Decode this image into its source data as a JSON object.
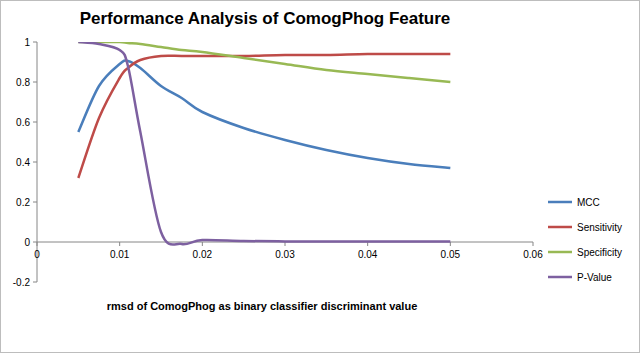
{
  "chart_data": {
    "type": "line",
    "title": "Performance Analysis of ComogPhog Feature",
    "x_label": "rmsd of ComogPhog as binary classifier discriminant value",
    "x": [
      0.005,
      0.0075,
      0.01,
      0.011,
      0.0125,
      0.015,
      0.0175,
      0.02,
      0.025,
      0.03,
      0.035,
      0.04,
      0.045,
      0.05
    ],
    "series": [
      {
        "name": "MCC",
        "color": "#4a7ebb",
        "values": [
          0.55,
          0.78,
          0.89,
          0.905,
          0.87,
          0.78,
          0.72,
          0.65,
          0.57,
          0.51,
          0.46,
          0.42,
          0.39,
          0.37
        ]
      },
      {
        "name": "Sensitivity",
        "color": "#be4b48",
        "values": [
          0.32,
          0.62,
          0.82,
          0.87,
          0.91,
          0.93,
          0.93,
          0.93,
          0.93,
          0.935,
          0.935,
          0.94,
          0.94,
          0.94
        ]
      },
      {
        "name": "Specificity",
        "color": "#98b954",
        "values": [
          1.0,
          1.0,
          1.0,
          0.995,
          0.99,
          0.975,
          0.96,
          0.95,
          0.92,
          0.89,
          0.86,
          0.84,
          0.82,
          0.8
        ]
      },
      {
        "name": "P-Value",
        "color": "#7d60a0",
        "values": [
          1.0,
          0.99,
          0.96,
          0.88,
          0.55,
          0.05,
          -0.01,
          0.01,
          0.005,
          0.003,
          0.002,
          0.002,
          0.002,
          0.003
        ]
      }
    ],
    "xlim": [
      0,
      0.06
    ],
    "xticks": [
      0,
      0.01,
      0.02,
      0.03,
      0.04,
      0.05,
      0.06
    ],
    "ylim": [
      -0.2,
      1
    ],
    "yticks": [
      -0.2,
      0,
      0.2,
      0.4,
      0.6,
      0.8,
      1
    ],
    "grid": false,
    "legend": "right"
  }
}
